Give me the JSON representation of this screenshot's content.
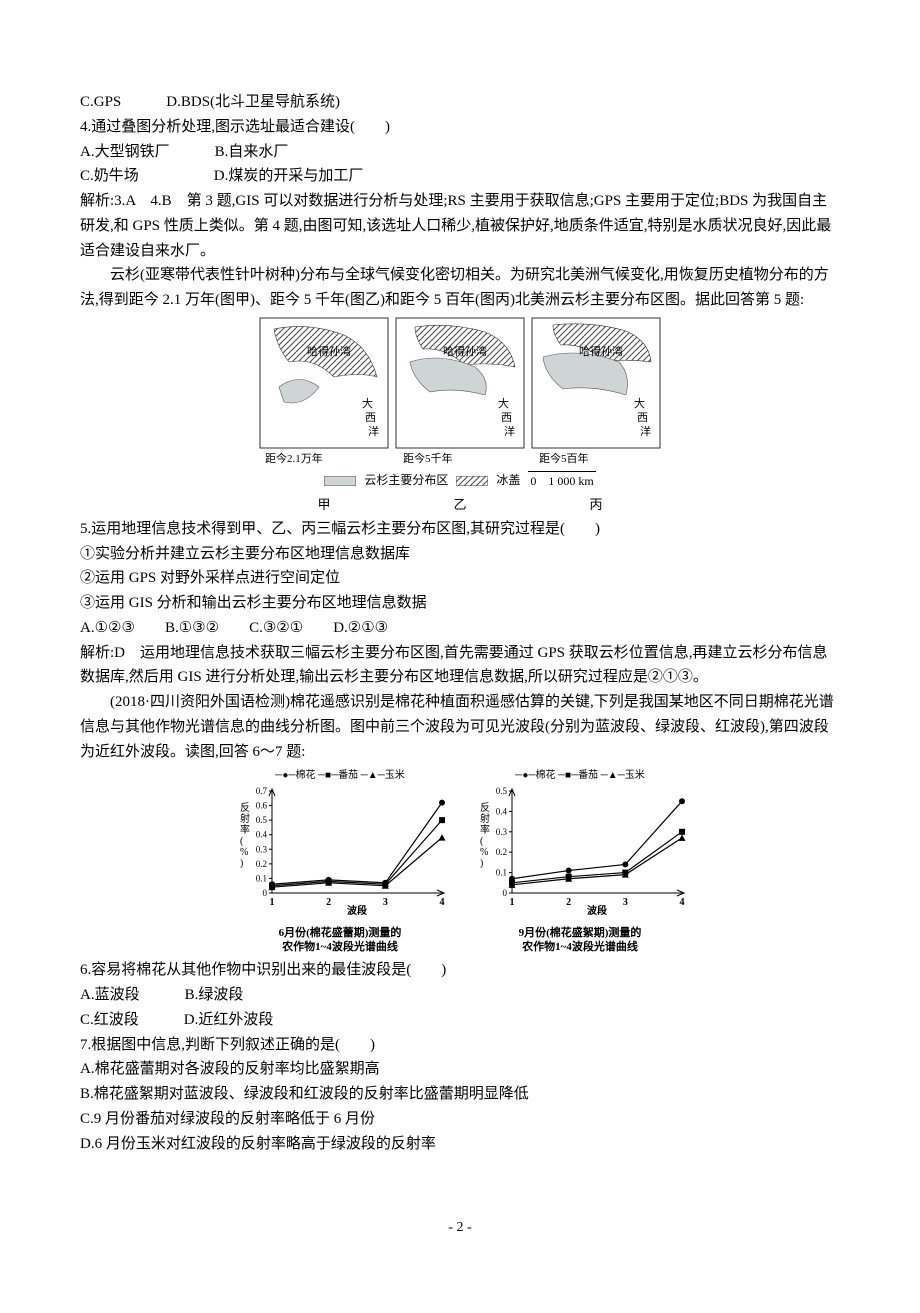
{
  "q3": {
    "optC": "C.GPS",
    "optD": "D.BDS(北斗卫星导航系统)"
  },
  "q4": {
    "stem": "4.通过叠图分析处理,图示选址最适合建设(　　)",
    "optA": "A.大型钢铁厂",
    "optB": "B.自来水厂",
    "optC": "C.奶牛场",
    "optD": "D.煤炭的开采与加工厂"
  },
  "ans34": "解析:3.A　4.B　第 3 题,GIS 可以对数据进行分析与处理;RS 主要用于获取信息;GPS 主要用于定位;BDS 为我国自主研发,和 GPS 性质上类似。第 4 题,由图可知,该选址人口稀少,植被保护好,地质条件适宜,特别是水质状况良好,因此最适合建设自来水厂。",
  "passage5": "云杉(亚寒带代表性针叶树种)分布与全球气候变化密切相关。为研究北美洲气候变化,用恢复历史植物分布的方法,得到距今 2.1 万年(图甲)、距今 5 千年(图乙)和距今 5 百年(图丙)北美洲云杉主要分布区图。据此回答第 5 题:",
  "maps": {
    "hudson": "哈得孙湾",
    "atlantic1": "大",
    "atlantic2": "西",
    "atlantic3": "洋",
    "cap1": "距今2.1万年",
    "cap2": "距今5千年",
    "cap3": "距今5百年",
    "leg1": "云杉主要分布区",
    "leg2": "冰盖",
    "scale": "0　1 000 km",
    "label1": "甲",
    "label2": "乙",
    "label3": "丙"
  },
  "q5": {
    "stem": "5.运用地理信息技术得到甲、乙、丙三幅云杉主要分布区图,其研究过程是(　　)",
    "s1": "①实验分析并建立云杉主要分布区地理信息数据库",
    "s2": "②运用 GPS 对野外采样点进行空间定位",
    "s3": "③运用 GIS 分析和输出云杉主要分布区地理信息数据",
    "optA": "A.①②③",
    "optB": "B.①③②",
    "optC": "C.③②①",
    "optD": "D.②①③"
  },
  "ans5": "解析:D　运用地理信息技术获取三幅云杉主要分布区图,首先需要通过 GPS 获取云杉位置信息,再建立云杉分布信息数据库,然后用 GIS 进行分析处理,输出云杉主要分布区地理信息数据,所以研究过程应是②①③。",
  "passage67": "(2018·四川资阳外国语检测)棉花遥感识别是棉花种植面积遥感估算的关键,下列是我国某地区不同日期棉花光谱信息与其他作物光谱信息的曲线分析图。图中前三个波段为可见光波段(分别为蓝波段、绿波段、红波段),第四波段为近红外波段。读图,回答 6～7 题:",
  "charts": {
    "ylabel": "反射率(%)",
    "xlabel": "波段",
    "legend_cotton": "棉花",
    "legend_tomato": "番茄",
    "legend_corn": "玉米",
    "cap1a": "6月份(棉花盛蕾期)测量的",
    "cap1b": "农作物1~4波段光谱曲线",
    "cap2a": "9月份(棉花盛絮期)测量的",
    "cap2b": "农作物1~4波段光谱曲线",
    "chart1": {
      "ymax": 0.7,
      "yticks": [
        "0",
        "0.1",
        "0.2",
        "0.3",
        "0.4",
        "0.5",
        "0.6",
        "0.7"
      ],
      "xticks": [
        "1",
        "2",
        "3",
        "4"
      ],
      "cotton": [
        0.06,
        0.09,
        0.07,
        0.62
      ],
      "tomato": [
        0.05,
        0.08,
        0.06,
        0.5
      ],
      "corn": [
        0.04,
        0.07,
        0.05,
        0.38
      ]
    },
    "chart2": {
      "ymax": 0.5,
      "yticks": [
        "0",
        "0.1",
        "0.2",
        "0.3",
        "0.4",
        "0.5"
      ],
      "xticks": [
        "1",
        "2",
        "3",
        "4"
      ],
      "cotton": [
        0.07,
        0.11,
        0.14,
        0.45
      ],
      "tomato": [
        0.05,
        0.08,
        0.1,
        0.3
      ],
      "corn": [
        0.04,
        0.07,
        0.09,
        0.27
      ]
    },
    "colors": {
      "line": "#000000",
      "bg": "#ffffff"
    }
  },
  "q6": {
    "stem": "6.容易将棉花从其他作物中识别出来的最佳波段是(　　)",
    "optA": "A.蓝波段",
    "optB": "B.绿波段",
    "optC": "C.红波段",
    "optD": "D.近红外波段"
  },
  "q7": {
    "stem": "7.根据图中信息,判断下列叙述正确的是(　　)",
    "optA": "A.棉花盛蕾期对各波段的反射率均比盛絮期高",
    "optB": "B.棉花盛絮期对蓝波段、绿波段和红波段的反射率比盛蕾期明显降低",
    "optC": "C.9 月份番茄对绿波段的反射率略低于 6 月份",
    "optD": "D.6 月份玉米对红波段的反射率略高于绿波段的反射率"
  },
  "pageNum": "- 2 -"
}
